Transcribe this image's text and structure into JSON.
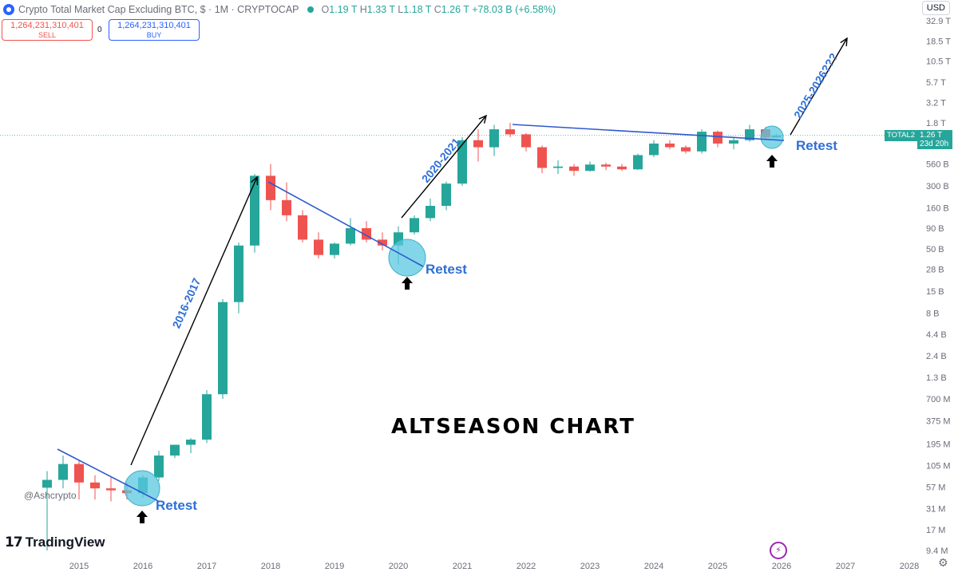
{
  "header": {
    "title": "Crypto Total Market Cap Excluding BTC, $ · 1M · CRYPTOCAP",
    "ohlc": {
      "o_label": "O",
      "o": "1.19 T",
      "h_label": "H",
      "h": "1.33 T",
      "l_label": "L",
      "l": "1.18 T",
      "c_label": "C",
      "c": "1.26 T",
      "change": "+78.03 B (+6.58%)"
    }
  },
  "trade": {
    "sell_value": "1,264,231,310,401",
    "sell_label": "SELL",
    "buy_value": "1,264,231,310,401",
    "buy_label": "BUY",
    "spread": "0"
  },
  "currency": "USD",
  "watermark": {
    "handle": "@Ashcrypto",
    "brand": "TradingView",
    "brand_mark": "17"
  },
  "price_tag": {
    "symbol": "TOTAL2",
    "value": "1.26 T",
    "countdown": "23d 20h"
  },
  "annotations": {
    "headline": "ALTSEASON CHART",
    "retest": "Retest",
    "cycle_1": "2016-2017",
    "cycle_2": "2020-2021",
    "cycle_3": "2025-2026???"
  },
  "icons": {
    "flash": "lightning-icon",
    "settings": "gear-icon"
  },
  "colors": {
    "up": "#26a69a",
    "down": "#ef5350",
    "trendline": "#2f58cd",
    "circle": "#5ac8e0",
    "text_blue": "#2f6fd6"
  },
  "chart_data": {
    "type": "candlestick",
    "title": "Crypto Total Market Cap Excluding BTC, $ · 1M · CRYPTOCAP",
    "scale": "log",
    "x_ticks": [
      "2015",
      "2016",
      "2017",
      "2018",
      "2019",
      "2020",
      "2021",
      "2022",
      "2023",
      "2024",
      "2025",
      "2026",
      "2027",
      "2028"
    ],
    "y_ticks": [
      "32.9 T",
      "18.5 T",
      "10.5 T",
      "5.7 T",
      "3.2 T",
      "1.8 T",
      "560 B",
      "300 B",
      "160 B",
      "90 B",
      "50 B",
      "28 B",
      "15 B",
      "8 B",
      "4.4 B",
      "2.4 B",
      "1.3 B",
      "700 M",
      "375 M",
      "195 M",
      "105 M",
      "57 M",
      "31 M",
      "17 M",
      "9.4 M"
    ],
    "y_values": [
      32900000000000,
      18500000000000,
      10500000000000,
      5700000000000,
      3200000000000,
      1800000000000,
      560000000000,
      300000000000,
      160000000000,
      90000000000,
      50000000000,
      28000000000,
      15000000000,
      8000000000,
      4400000000,
      2400000000,
      1300000000,
      700000000,
      375000000,
      195000000,
      105000000,
      57000000,
      31000000,
      17000000,
      9400000
    ],
    "last_close": 1260000000000,
    "series": [
      {
        "date": "2014-07",
        "open": 56000000,
        "high": 90000000,
        "low": 9400000,
        "close": 70000000
      },
      {
        "date": "2014-10",
        "open": 70000000,
        "high": 140000000,
        "low": 55000000,
        "close": 110000000
      },
      {
        "date": "2015-01",
        "open": 110000000,
        "high": 120000000,
        "low": 40000000,
        "close": 65000000
      },
      {
        "date": "2015-04",
        "open": 65000000,
        "high": 80000000,
        "low": 40000000,
        "close": 55000000
      },
      {
        "date": "2015-07",
        "open": 55000000,
        "high": 75000000,
        "low": 38000000,
        "close": 52000000
      },
      {
        "date": "2015-10",
        "open": 52000000,
        "high": 65000000,
        "low": 40000000,
        "close": 48000000
      },
      {
        "date": "2016-01",
        "open": 48000000,
        "high": 80000000,
        "low": 42000000,
        "close": 75000000
      },
      {
        "date": "2016-04",
        "open": 75000000,
        "high": 160000000,
        "low": 68000000,
        "close": 140000000
      },
      {
        "date": "2016-07",
        "open": 140000000,
        "high": 190000000,
        "low": 130000000,
        "close": 190000000
      },
      {
        "date": "2016-10",
        "open": 190000000,
        "high": 230000000,
        "low": 150000000,
        "close": 220000000
      },
      {
        "date": "2017-01",
        "open": 220000000,
        "high": 900000000,
        "low": 200000000,
        "close": 800000000
      },
      {
        "date": "2017-04",
        "open": 800000000,
        "high": 12000000000,
        "low": 700000000,
        "close": 11000000000
      },
      {
        "date": "2017-07",
        "open": 11000000000,
        "high": 60000000000,
        "low": 8000000000,
        "close": 55000000000
      },
      {
        "date": "2017-10",
        "open": 55000000000,
        "high": 420000000000,
        "low": 45000000000,
        "close": 400000000000
      },
      {
        "date": "2018-01",
        "open": 400000000000,
        "high": 560000000000,
        "low": 150000000000,
        "close": 200000000000
      },
      {
        "date": "2018-04",
        "open": 200000000000,
        "high": 330000000000,
        "low": 110000000000,
        "close": 130000000000
      },
      {
        "date": "2018-07",
        "open": 130000000000,
        "high": 150000000000,
        "low": 60000000000,
        "close": 65000000000
      },
      {
        "date": "2018-10",
        "open": 65000000000,
        "high": 80000000000,
        "low": 38000000000,
        "close": 42000000000
      },
      {
        "date": "2019-01",
        "open": 42000000000,
        "high": 60000000000,
        "low": 38000000000,
        "close": 58000000000
      },
      {
        "date": "2019-04",
        "open": 58000000000,
        "high": 120000000000,
        "low": 55000000000,
        "close": 90000000000
      },
      {
        "date": "2019-07",
        "open": 90000000000,
        "high": 110000000000,
        "low": 60000000000,
        "close": 65000000000
      },
      {
        "date": "2019-10",
        "open": 65000000000,
        "high": 80000000000,
        "low": 48000000000,
        "close": 55000000000
      },
      {
        "date": "2020-01",
        "open": 55000000000,
        "high": 95000000000,
        "low": 32000000000,
        "close": 80000000000
      },
      {
        "date": "2020-04",
        "open": 80000000000,
        "high": 130000000000,
        "low": 75000000000,
        "close": 120000000000
      },
      {
        "date": "2020-07",
        "open": 120000000000,
        "high": 210000000000,
        "low": 110000000000,
        "close": 170000000000
      },
      {
        "date": "2020-10",
        "open": 170000000000,
        "high": 340000000000,
        "low": 150000000000,
        "close": 320000000000
      },
      {
        "date": "2021-01",
        "open": 320000000000,
        "high": 1200000000000,
        "low": 300000000000,
        "close": 1100000000000
      },
      {
        "date": "2021-04",
        "open": 1100000000000,
        "high": 1500000000000,
        "low": 600000000000,
        "close": 900000000000
      },
      {
        "date": "2021-07",
        "open": 900000000000,
        "high": 1700000000000,
        "low": 700000000000,
        "close": 1500000000000
      },
      {
        "date": "2021-10",
        "open": 1500000000000,
        "high": 1800000000000,
        "low": 1200000000000,
        "close": 1300000000000
      },
      {
        "date": "2022-01",
        "open": 1300000000000,
        "high": 1350000000000,
        "low": 800000000000,
        "close": 900000000000
      },
      {
        "date": "2022-04",
        "open": 900000000000,
        "high": 950000000000,
        "low": 430000000000,
        "close": 500000000000
      },
      {
        "date": "2022-07",
        "open": 500000000000,
        "high": 620000000000,
        "low": 420000000000,
        "close": 520000000000
      },
      {
        "date": "2022-10",
        "open": 520000000000,
        "high": 560000000000,
        "low": 400000000000,
        "close": 460000000000
      },
      {
        "date": "2023-01",
        "open": 460000000000,
        "high": 600000000000,
        "low": 450000000000,
        "close": 550000000000
      },
      {
        "date": "2023-04",
        "open": 550000000000,
        "high": 580000000000,
        "low": 470000000000,
        "close": 520000000000
      },
      {
        "date": "2023-07",
        "open": 520000000000,
        "high": 560000000000,
        "low": 460000000000,
        "close": 480000000000
      },
      {
        "date": "2023-10",
        "open": 480000000000,
        "high": 750000000000,
        "low": 470000000000,
        "close": 720000000000
      },
      {
        "date": "2024-01",
        "open": 720000000000,
        "high": 1100000000000,
        "low": 680000000000,
        "close": 1000000000000
      },
      {
        "date": "2024-04",
        "open": 1000000000000,
        "high": 1100000000000,
        "low": 850000000000,
        "close": 900000000000
      },
      {
        "date": "2024-07",
        "open": 900000000000,
        "high": 950000000000,
        "low": 750000000000,
        "close": 800000000000
      },
      {
        "date": "2024-10",
        "open": 800000000000,
        "high": 1500000000000,
        "low": 750000000000,
        "close": 1400000000000
      },
      {
        "date": "2025-01",
        "open": 1400000000000,
        "high": 1450000000000,
        "low": 900000000000,
        "close": 1000000000000
      },
      {
        "date": "2025-04",
        "open": 1000000000000,
        "high": 1200000000000,
        "low": 850000000000,
        "close": 1100000000000
      },
      {
        "date": "2025-07",
        "open": 1100000000000,
        "high": 1700000000000,
        "low": 1050000000000,
        "close": 1500000000000
      },
      {
        "date": "2025-10",
        "open": 1500000000000,
        "high": 1600000000000,
        "low": 1100000000000,
        "close": 1190000000000
      },
      {
        "date": "2025-12",
        "open": 1190000000000,
        "high": 1330000000000,
        "low": 1180000000000,
        "close": 1260000000000
      }
    ]
  }
}
